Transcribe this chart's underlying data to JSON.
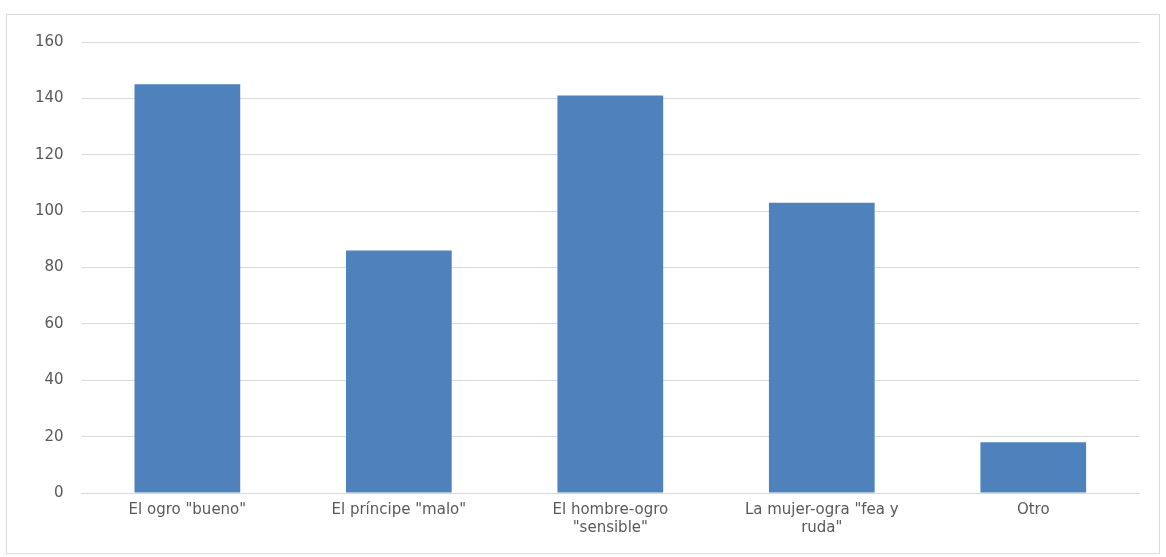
{
  "chart_data": {
    "type": "bar",
    "categories": [
      "El ogro \"bueno\"",
      "El príncipe \"malo\"",
      "El hombre-ogro \"sensible\"",
      "La mujer-ogra \"fea y ruda\"",
      "Otro"
    ],
    "values": [
      145,
      86,
      141,
      103,
      18
    ],
    "color": "#4f81bd",
    "ylim": [
      0,
      160
    ],
    "yticks": [
      0,
      20,
      40,
      60,
      80,
      100,
      120,
      140,
      160
    ],
    "grid": "y",
    "legend": false
  }
}
